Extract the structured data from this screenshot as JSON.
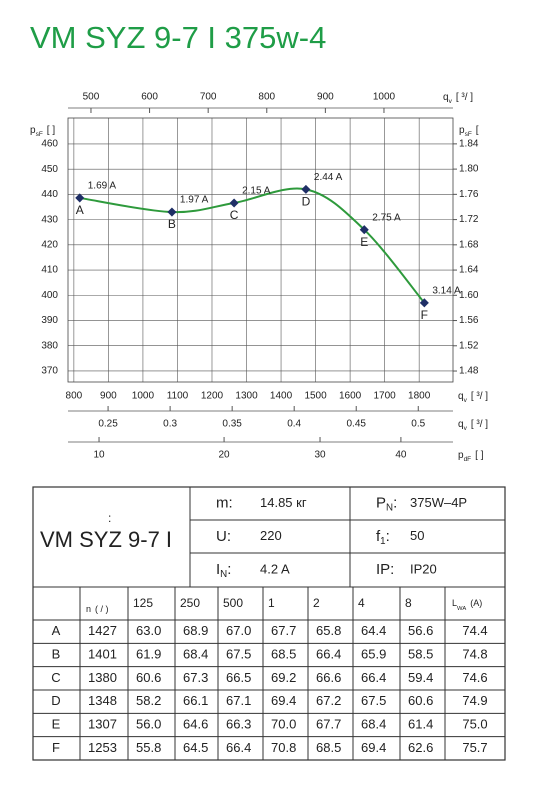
{
  "title": "VM SYZ 9-7 I 375w-4",
  "chart_data": {
    "type": "line",
    "grid": true,
    "xlim": [
      783,
      1898
    ],
    "xticks": [
      800,
      900,
      1000,
      1100,
      1200,
      1300,
      1400,
      1500,
      1600,
      1700,
      1800
    ],
    "xlabel": {
      "text": "q",
      "sub": "v",
      "unit": "[  ³/  ]"
    },
    "ylim": [
      365.6,
      470.3
    ],
    "yticks": [
      370,
      380,
      390,
      400,
      410,
      420,
      430,
      440,
      450,
      460
    ],
    "ylabel": {
      "text": "p",
      "sub": "sF",
      "unit": "[   ]"
    },
    "y2lim": [
      1.4626,
      1.881
    ],
    "y2ticks": [
      1.84,
      {
        "value": 1.8,
        "label": "1.80"
      },
      1.76,
      1.72,
      1.68,
      1.64,
      {
        "value": 1.6,
        "label": "1.60"
      },
      1.56,
      1.52,
      1.48
    ],
    "y2label": {
      "text": "p",
      "sub": "sF",
      "unit": "["
    },
    "x2lim": [
      460.8,
      1117.8
    ],
    "x2ticks": [
      500,
      600,
      700,
      800,
      900,
      1000
    ],
    "x2label": {
      "text": "q",
      "sub": "v",
      "unit": "[   ³/    ]"
    },
    "x3lim": [
      0.2177,
      0.528
    ],
    "x3ticks": [
      0.25,
      0.3,
      0.35,
      0.4,
      0.45,
      0.5
    ],
    "x3label": {
      "text": "q",
      "sub": "v",
      "unit": "[  ³/  ]"
    },
    "x4lim": [
      8.05,
      47.2
    ],
    "x4scale": "sqrt",
    "x4ticks": [
      10,
      20,
      30,
      40
    ],
    "x4label": {
      "text": "p",
      "sub": "dF",
      "unit": "[   ]"
    },
    "series": [
      {
        "color": "#2e9a3c",
        "marker_color": "#1f2f66",
        "x": [
          817,
          1084,
          1264,
          1472,
          1641,
          1815
        ],
        "values": [
          438.6,
          433,
          436.6,
          442,
          426,
          397
        ],
        "point_labels": [
          "A",
          "B",
          "C",
          "D",
          "E",
          "F"
        ],
        "annotations": [
          "1.69 A",
          "1.97 A",
          "2.15 A",
          "2.44 A",
          "2.75 A",
          "3.14 A"
        ]
      }
    ]
  },
  "specs": {
    "prefix": ":",
    "name": "VM SYZ 9-7 I",
    "left": [
      {
        "label": "m:",
        "value": "14.85  кг"
      },
      {
        "label": "U:",
        "value": "220"
      },
      {
        "label": "I",
        "sub": "N",
        "suffix": ":",
        "value": "4.2  A"
      }
    ],
    "right": [
      {
        "label": "P",
        "sub": "N",
        "suffix": ":",
        "value": "375W–4P"
      },
      {
        "label": "f",
        "sub": "1",
        "suffix": ":",
        "value": "50"
      },
      {
        "label": "IP:",
        "value": "IP20"
      }
    ]
  },
  "sound": {
    "n": {
      "label": "n",
      "unit": "( /  )"
    },
    "bands": [
      "125",
      "250",
      "500",
      "1",
      "2",
      "4",
      "8"
    ],
    "lwa": {
      "label": "L",
      "sub": "WA",
      "unit": "(A)"
    },
    "rows": [
      [
        "A",
        "1427",
        "63.0",
        "68.9",
        "67.0",
        "67.7",
        "65.8",
        "64.4",
        "56.6",
        "74.4"
      ],
      [
        "B",
        "1401",
        "61.9",
        "68.4",
        "67.5",
        "68.5",
        "66.4",
        "65.9",
        "58.5",
        "74.8"
      ],
      [
        "C",
        "1380",
        "60.6",
        "67.3",
        "66.5",
        "69.2",
        "66.6",
        "66.4",
        "59.4",
        "74.6"
      ],
      [
        "D",
        "1348",
        "58.2",
        "66.1",
        "67.1",
        "69.4",
        "67.2",
        "67.5",
        "60.6",
        "74.9"
      ],
      [
        "E",
        "1307",
        "56.0",
        "64.6",
        "66.3",
        "70.0",
        "67.7",
        "68.4",
        "61.4",
        "75.0"
      ],
      [
        "F",
        "1253",
        "55.8",
        "64.5",
        "66.4",
        "70.8",
        "68.5",
        "69.4",
        "62.6",
        "75.7"
      ]
    ]
  }
}
